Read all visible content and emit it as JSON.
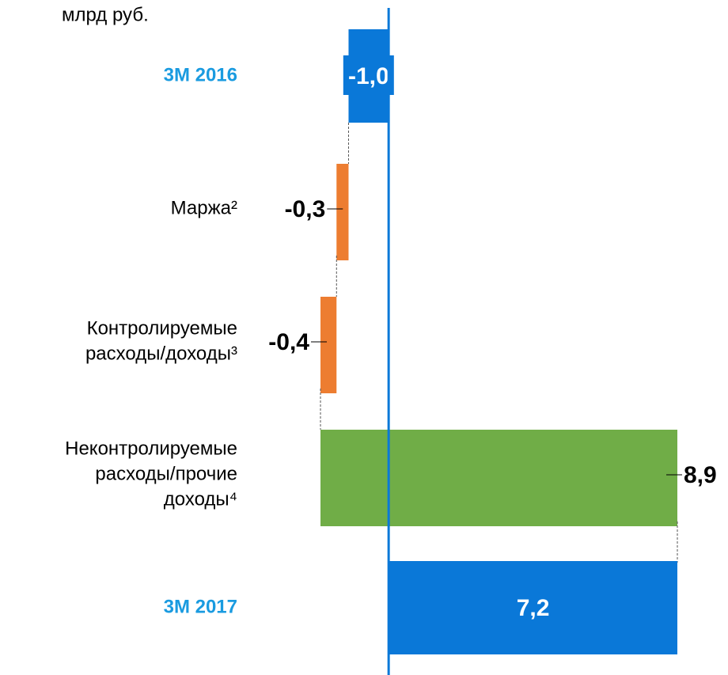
{
  "chart_data": {
    "type": "waterfall",
    "unit": "млрд руб.",
    "categories": [
      [
        "3M 2016"
      ],
      [
        "Маржа²"
      ],
      [
        "Контролируемые",
        "расходы/доходы³"
      ],
      [
        "Неконтролируемые",
        "расходы/прочие",
        "доходы⁴"
      ],
      [
        "3M 2017"
      ]
    ],
    "values": [
      -1.0,
      -0.3,
      -0.4,
      8.9,
      7.2
    ],
    "value_labels": [
      "-1,0",
      "-0,3",
      "-0,4",
      "8,9",
      "7,2"
    ],
    "totals": [
      true,
      false,
      false,
      false,
      true
    ],
    "colors": {
      "total": "#0a78d8",
      "decrease": "#ed7d31",
      "increase": "#70ad47",
      "total_label": "#1a9be0"
    }
  }
}
